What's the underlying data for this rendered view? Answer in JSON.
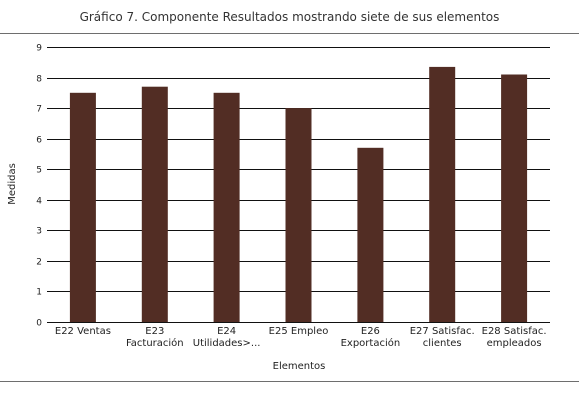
{
  "chart_data": {
    "type": "bar",
    "title": "Gráfico 7. Componente Resultados mostrando siete de sus elementos",
    "xlabel": "Elementos",
    "ylabel": "Medidas",
    "ylim": [
      0,
      9
    ],
    "yticks": [
      0,
      1,
      2,
      3,
      4,
      5,
      6,
      7,
      8,
      9
    ],
    "grid": true,
    "bar_color": "#522d24",
    "categories": [
      [
        "E22 Ventas"
      ],
      [
        "E23",
        "Facturación"
      ],
      [
        "E24",
        "Utilidades>..."
      ],
      [
        "E25 Empleo"
      ],
      [
        "E26",
        "Exportación"
      ],
      [
        "E27 Satisfac.",
        "clientes"
      ],
      [
        "E28 Satisfac.",
        "empleados"
      ]
    ],
    "values": [
      7.5,
      7.7,
      7.5,
      7.0,
      5.7,
      8.35,
      8.1
    ]
  }
}
